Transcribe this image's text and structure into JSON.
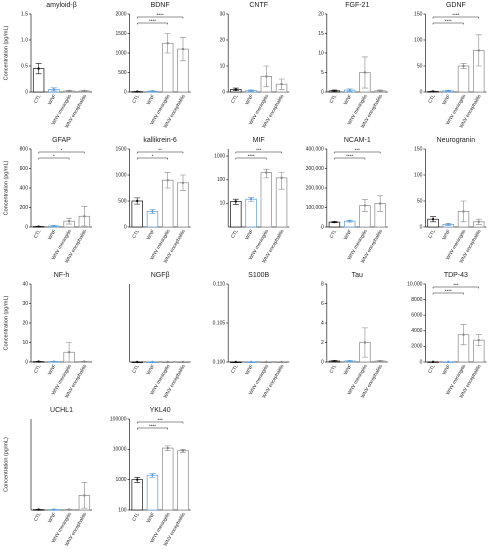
{
  "chart_data": [
    {
      "type": "bar",
      "title": "amyloid-β",
      "ylabel": "Concentration (pg/mL)",
      "categories": [
        "CTL",
        "WNF",
        "WNV meningitis",
        "WNV encephalitis"
      ],
      "values": [
        0.45,
        0.05,
        0.02,
        0.02
      ],
      "errors": [
        0.1,
        0.03,
        0.01,
        0.01
      ],
      "colors": [
        "#111111",
        "#5b9bd5",
        "#888888",
        "#888888"
      ],
      "ylim": [
        0,
        1.5
      ],
      "yticks": [
        0,
        {
          "value": 0.5,
          "label": "0.5"
        },
        {
          "value": 1,
          "label": "1.0"
        },
        {
          "value": 1.5,
          "label": "1.5"
        }
      ],
      "log": false,
      "annotations": []
    },
    {
      "type": "bar",
      "title": "BDNF",
      "categories": [
        "CTL",
        "WNF",
        "WNV meningitis",
        "WNV encephalitis"
      ],
      "values": [
        10,
        20,
        1250,
        1100
      ],
      "errors": [
        5,
        10,
        250,
        300
      ],
      "colors": [
        "#111111",
        "#5b9bd5",
        "#888888",
        "#888888"
      ],
      "ylim": [
        0,
        2000
      ],
      "yticks": [
        0,
        500,
        1000,
        1500,
        2000
      ],
      "log": false,
      "annotations": [
        {
          "from": 0,
          "to": 3,
          "label": "****"
        },
        {
          "from": 0,
          "to": 2,
          "label": "****"
        }
      ]
    },
    {
      "type": "bar",
      "title": "CNTF",
      "categories": [
        "CTL",
        "WNF",
        "WNV meningitis",
        "WNV encephalitis"
      ],
      "values": [
        1,
        0.5,
        6,
        3
      ],
      "errors": [
        0.5,
        0.3,
        4,
        2
      ],
      "colors": [
        "#111111",
        "#5b9bd5",
        "#888888",
        "#888888"
      ],
      "ylim": [
        0,
        30
      ],
      "yticks": [
        0,
        10,
        20,
        30
      ],
      "log": false,
      "annotations": []
    },
    {
      "type": "bar",
      "title": "FGF-21",
      "categories": [
        "CTL",
        "WNF",
        "WNV meningitis",
        "WNV encephalitis"
      ],
      "values": [
        0.3,
        0.5,
        5,
        0.3
      ],
      "errors": [
        0.2,
        0.3,
        4,
        0.2
      ],
      "colors": [
        "#111111",
        "#5b9bd5",
        "#888888",
        "#888888"
      ],
      "ylim": [
        0,
        20
      ],
      "yticks": [
        0,
        5,
        10,
        15,
        20
      ],
      "log": false,
      "annotations": []
    },
    {
      "type": "bar",
      "title": "GDNF",
      "categories": [
        "CTL",
        "WNF",
        "WNV meningitis",
        "WNV encephalitis"
      ],
      "values": [
        1,
        2,
        50,
        80
      ],
      "errors": [
        0.5,
        1,
        5,
        30
      ],
      "colors": [
        "#111111",
        "#5b9bd5",
        "#888888",
        "#888888"
      ],
      "ylim": [
        0,
        150
      ],
      "yticks": [
        0,
        50,
        100,
        150
      ],
      "log": false,
      "annotations": [
        {
          "from": 0,
          "to": 3,
          "label": "****"
        },
        {
          "from": 0,
          "to": 2,
          "label": "****"
        }
      ]
    },
    {
      "type": "bar",
      "title": "GFAP",
      "ylabel": "Concentration (pg/mL)",
      "categories": [
        "CTL",
        "WNF",
        "WNV meningitis",
        "WNV encephalitis"
      ],
      "values": [
        5,
        10,
        60,
        110
      ],
      "errors": [
        2,
        5,
        30,
        100
      ],
      "colors": [
        "#111111",
        "#5b9bd5",
        "#888888",
        "#888888"
      ],
      "ylim": [
        0,
        800
      ],
      "yticks": [
        0,
        200,
        400,
        600,
        800
      ],
      "log": false,
      "annotations": [
        {
          "from": 0,
          "to": 3,
          "label": "*"
        },
        {
          "from": 0,
          "to": 2,
          "label": "*"
        }
      ]
    },
    {
      "type": "bar",
      "title": "kallikrein-6",
      "categories": [
        "CTL",
        "WNF",
        "WNV meningitis",
        "WNV encephalitis"
      ],
      "values": [
        500,
        300,
        900,
        850
      ],
      "errors": [
        60,
        40,
        150,
        150
      ],
      "colors": [
        "#111111",
        "#5b9bd5",
        "#888888",
        "#888888"
      ],
      "ylim": [
        0,
        1500
      ],
      "yticks": [
        0,
        500,
        1000,
        1500
      ],
      "log": false,
      "annotations": [
        {
          "from": 0,
          "to": 3,
          "label": "**"
        },
        {
          "from": 0,
          "to": 2,
          "label": "*"
        }
      ]
    },
    {
      "type": "bar",
      "title": "MIF",
      "categories": [
        "CTL",
        "WNF",
        "WNV meningitis",
        "WNV encephalitis"
      ],
      "values": [
        12,
        15,
        200,
        120
      ],
      "errors": [
        3,
        3,
        80,
        80
      ],
      "colors": [
        "#111111",
        "#5b9bd5",
        "#888888",
        "#888888"
      ],
      "ylim": [
        1,
        2000
      ],
      "yticks": [
        10,
        100,
        1000
      ],
      "log": true,
      "annotations": [
        {
          "from": 0,
          "to": 3,
          "label": "***"
        },
        {
          "from": 0,
          "to": 2,
          "label": "****"
        }
      ]
    },
    {
      "type": "bar",
      "title": "NCAM-1",
      "categories": [
        "CTL",
        "WNF",
        "WNV meningitis",
        "WNV encephalitis"
      ],
      "values": [
        25000,
        30000,
        110000,
        120000
      ],
      "errors": [
        3000,
        5000,
        30000,
        40000
      ],
      "colors": [
        "#111111",
        "#5b9bd5",
        "#888888",
        "#888888"
      ],
      "ylim": [
        0,
        400000
      ],
      "yticks": [
        0,
        {
          "value": 100000,
          "label": "100,000"
        },
        {
          "value": 200000,
          "label": "200,000"
        },
        {
          "value": 300000,
          "label": "300,000"
        },
        {
          "value": 400000,
          "label": "400,000"
        }
      ],
      "log": false,
      "annotations": [
        {
          "from": 0,
          "to": 3,
          "label": "***"
        },
        {
          "from": 0,
          "to": 2,
          "label": "****"
        }
      ]
    },
    {
      "type": "bar",
      "title": "Neurogranin",
      "categories": [
        "CTL",
        "WNF",
        "WNV meningitis",
        "WNV encephalitis"
      ],
      "values": [
        15,
        5,
        30,
        10
      ],
      "errors": [
        5,
        2,
        20,
        5
      ],
      "colors": [
        "#111111",
        "#5b9bd5",
        "#888888",
        "#888888"
      ],
      "ylim": [
        0,
        150
      ],
      "yticks": [
        0,
        50,
        100,
        150
      ],
      "log": false,
      "annotations": []
    },
    {
      "type": "bar",
      "title": "NF-h",
      "ylabel": "Concentration (pg/mL)",
      "categories": [
        "CTL",
        "WNF",
        "WNV meningitis",
        "WNV encephalitis"
      ],
      "values": [
        0.2,
        0.2,
        5,
        0.2
      ],
      "errors": [
        0.1,
        0.1,
        5,
        0.1
      ],
      "colors": [
        "#111111",
        "#5b9bd5",
        "#888888",
        "#888888"
      ],
      "ylim": [
        0,
        40
      ],
      "yticks": [
        0,
        10,
        20,
        30,
        40
      ],
      "log": false,
      "annotations": []
    },
    {
      "type": "bar",
      "title": "NGFβ",
      "categories": [
        "CTL",
        "WNF",
        "WNV meningitis",
        "WNV encephalitis"
      ],
      "values": [
        0.1,
        0.1,
        0.1,
        0.1
      ],
      "errors": [
        0,
        0,
        0,
        0
      ],
      "colors": [
        "#111111",
        "#5b9bd5",
        "#888888",
        "#888888"
      ],
      "ylim": [
        0.1,
        0.11
      ],
      "yticks": [],
      "log": false,
      "annotations": []
    },
    {
      "type": "bar",
      "title": "S100B",
      "categories": [
        "CTL",
        "WNF",
        "WNV meningitis",
        "WNV encephalitis"
      ],
      "values": [
        0.1,
        0.1,
        0.1,
        0.1
      ],
      "errors": [
        0,
        0,
        0,
        0
      ],
      "colors": [
        "#111111",
        "#5b9bd5",
        "#888888",
        "#888888"
      ],
      "ylim": [
        0.1,
        0.11
      ],
      "yticks": [
        {
          "value": 0.1,
          "label": "0.100"
        },
        {
          "value": 0.105,
          "label": "0.105"
        },
        {
          "value": 0.11,
          "label": "0.110"
        }
      ],
      "log": false,
      "annotations": []
    },
    {
      "type": "bar",
      "title": "Tau",
      "categories": [
        "CTL",
        "WNF",
        "WNV meningitis",
        "WNV encephalitis"
      ],
      "values": [
        0.1,
        0.1,
        2,
        0.1
      ],
      "errors": [
        0.05,
        0.05,
        1.5,
        0.05
      ],
      "colors": [
        "#111111",
        "#5b9bd5",
        "#888888",
        "#888888"
      ],
      "ylim": [
        0,
        8
      ],
      "yticks": [
        0,
        2,
        4,
        6,
        8
      ],
      "log": false,
      "annotations": []
    },
    {
      "type": "bar",
      "title": "TDP-43",
      "categories": [
        "CTL",
        "WNF",
        "WNV meningitis",
        "WNV encephalitis"
      ],
      "values": [
        20,
        20,
        3500,
        2800
      ],
      "errors": [
        10,
        10,
        1300,
        700
      ],
      "colors": [
        "#111111",
        "#5b9bd5",
        "#888888",
        "#888888"
      ],
      "ylim": [
        0,
        10000
      ],
      "yticks": [
        0,
        2000,
        4000,
        6000,
        8000,
        {
          "value": 10000,
          "label": "10,000"
        }
      ],
      "log": false,
      "annotations": [
        {
          "from": 0,
          "to": 3,
          "label": "***"
        },
        {
          "from": 0,
          "to": 2,
          "label": "****"
        }
      ]
    },
    {
      "type": "bar",
      "title": "UCHL1",
      "ylabel": "Concentration (pg/mL)",
      "categories": [
        "CTL",
        "WNF",
        "WNV meningitis",
        "WNV encephalitis"
      ],
      "values": [
        2,
        2,
        2,
        80
      ],
      "errors": [
        1,
        1,
        1,
        70
      ],
      "colors": [
        "#111111",
        "#5b9bd5",
        "#888888",
        "#888888"
      ],
      "ylim": [
        0,
        500
      ],
      "yticks": [],
      "log": false,
      "annotations": []
    },
    {
      "type": "bar",
      "title": "YKL40",
      "categories": [
        "CTL",
        "WNF",
        "WNV meningitis",
        "WNV encephalitis"
      ],
      "values": [
        1000,
        1400,
        11000,
        9000
      ],
      "errors": [
        200,
        200,
        2000,
        1000
      ],
      "colors": [
        "#111111",
        "#5b9bd5",
        "#888888",
        "#888888"
      ],
      "ylim": [
        100,
        100000
      ],
      "yticks": [
        100,
        1000,
        10000,
        100000
      ],
      "log": true,
      "annotations": [
        {
          "from": 0,
          "to": 3,
          "label": "***"
        },
        {
          "from": 0,
          "to": 2,
          "label": "****"
        }
      ]
    }
  ]
}
